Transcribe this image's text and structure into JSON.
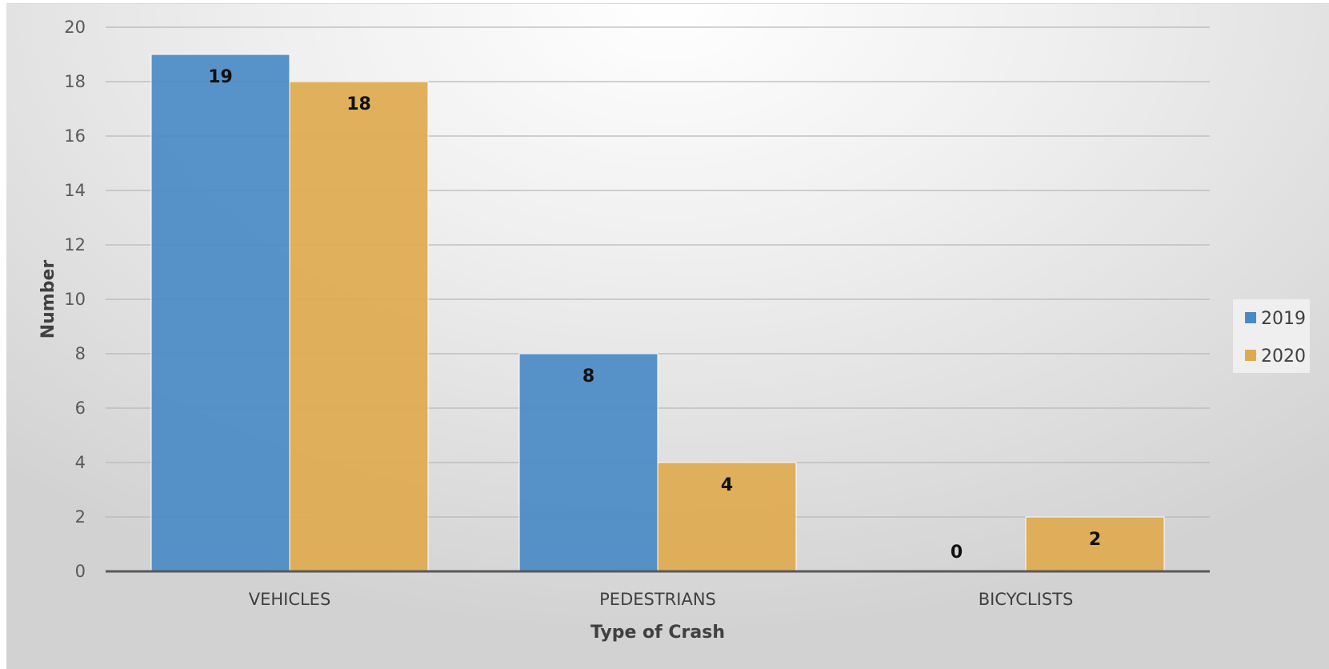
{
  "chart_data": {
    "type": "bar",
    "categories": [
      "VEHICLES",
      "PEDESTRIANS",
      "BICYCLISTS"
    ],
    "series": [
      {
        "name": "2019",
        "values": [
          19,
          8,
          0
        ],
        "color": "#4a8ac4"
      },
      {
        "name": "2020",
        "values": [
          18,
          4,
          2
        ],
        "color": "#deaa4f"
      }
    ],
    "title": "",
    "xlabel": "Type of Crash",
    "ylabel": "Number",
    "ylim": [
      0,
      20
    ],
    "yticks": [
      0,
      2,
      4,
      6,
      8,
      10,
      12,
      14,
      16,
      18,
      20
    ],
    "grid": true,
    "data_labels": true,
    "legend_position": "right"
  }
}
